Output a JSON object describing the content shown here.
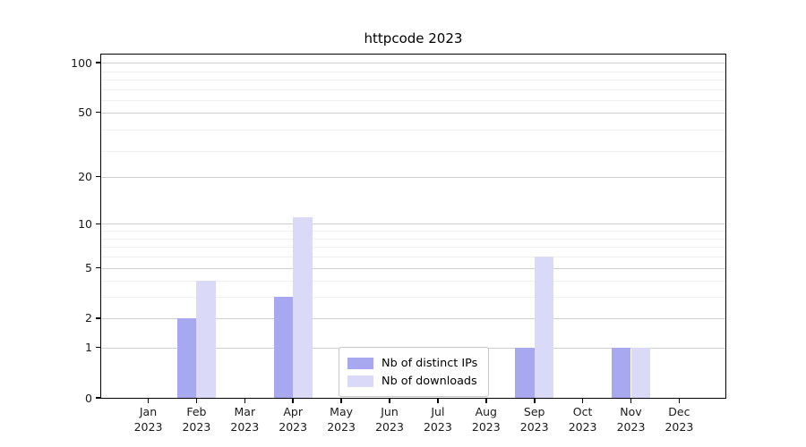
{
  "title": "httpcode 2023",
  "chart_data": {
    "type": "bar",
    "title": "httpcode 2023",
    "categories": [
      "Jan",
      "Feb",
      "Mar",
      "Apr",
      "May",
      "Jun",
      "Jul",
      "Aug",
      "Sep",
      "Oct",
      "Nov",
      "Dec"
    ],
    "category_year": "2023",
    "series": [
      {
        "name": "Nb of distinct IPs",
        "color": "#a8a8f0",
        "values": [
          0,
          2,
          0,
          3,
          0,
          0,
          0,
          0,
          1,
          0,
          1,
          0
        ]
      },
      {
        "name": "Nb of downloads",
        "color": "#dadaf8",
        "values": [
          0,
          4,
          0,
          11,
          0,
          0,
          0,
          0,
          6,
          0,
          1,
          0
        ]
      }
    ],
    "xlabel": "",
    "ylabel": "",
    "yscale": "log1p",
    "ylim": [
      0,
      112
    ],
    "yticks": [
      0,
      1,
      2,
      5,
      10,
      20,
      50,
      100
    ],
    "yticks_minor": [
      3,
      4,
      6,
      7,
      8,
      9,
      29,
      39,
      59,
      69,
      79,
      89
    ],
    "grid": "horizontal",
    "legend_position": "lower-center",
    "colors": {
      "grid_major": "#cfcfcf",
      "grid_minor": "#f0f0f0",
      "axis": "#000000",
      "background": "#ffffff"
    }
  }
}
